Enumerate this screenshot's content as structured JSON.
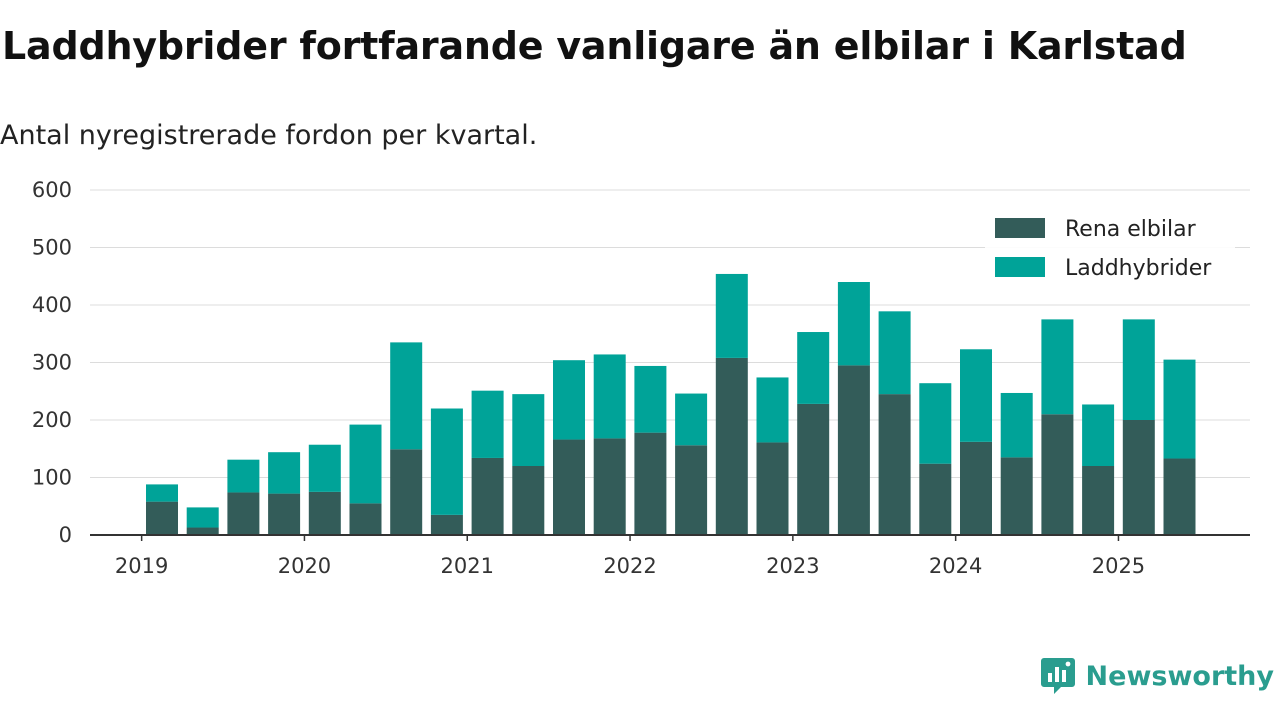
{
  "title": "Laddhybrider fortfarande vanligare än elbilar i Karlstad",
  "subtitle": "Antal nyregistrerade fordon per kvartal.",
  "brand": {
    "name": "Newsworthy",
    "color": "#2a9d8f"
  },
  "chart_data": {
    "type": "bar",
    "stacked": true,
    "title": "Laddhybrider fortfarande vanligare än elbilar i Karlstad",
    "subtitle": "Antal nyregistrerade fordon per kvartal.",
    "xlabel": "",
    "ylabel": "",
    "ylim": [
      0,
      600
    ],
    "yticks": [
      "0",
      "100",
      "200",
      "300",
      "400",
      "500",
      "600"
    ],
    "xticks": [
      {
        "label": "2019",
        "position": 0
      },
      {
        "label": "2020",
        "position": 4
      },
      {
        "label": "2021",
        "position": 8
      },
      {
        "label": "2022",
        "position": 12
      },
      {
        "label": "2023",
        "position": 16
      },
      {
        "label": "2024",
        "position": 20
      },
      {
        "label": "2025",
        "position": 24
      }
    ],
    "categories": [
      "2019 Q2",
      "2019 Q3",
      "2019 Q4",
      "2020 Q1",
      "2020 Q2",
      "2020 Q3",
      "2020 Q4",
      "2021 Q1",
      "2021 Q2",
      "2021 Q3",
      "2021 Q4",
      "2022 Q1",
      "2022 Q2",
      "2022 Q3",
      "2022 Q4",
      "2023 Q1",
      "2023 Q2",
      "2023 Q3",
      "2023 Q4",
      "2024 Q1",
      "2024 Q2",
      "2024 Q3",
      "2024 Q4",
      "2025 Q1",
      "2025 Q2",
      "2025 Q3"
    ],
    "legend_position": "top-right",
    "grid": true,
    "series": [
      {
        "name": "Rena elbilar",
        "color": "#335c59",
        "values": [
          58,
          13,
          74,
          72,
          75,
          55,
          149,
          35,
          134,
          120,
          166,
          168,
          178,
          156,
          308,
          161,
          228,
          295,
          245,
          124,
          162,
          135,
          210,
          120,
          200,
          133
        ]
      },
      {
        "name": "Laddhybrider",
        "color": "#00a398",
        "values": [
          30,
          35,
          57,
          72,
          82,
          137,
          186,
          185,
          117,
          125,
          138,
          146,
          116,
          90,
          146,
          113,
          125,
          145,
          144,
          140,
          161,
          112,
          165,
          107,
          175,
          172
        ]
      }
    ]
  }
}
